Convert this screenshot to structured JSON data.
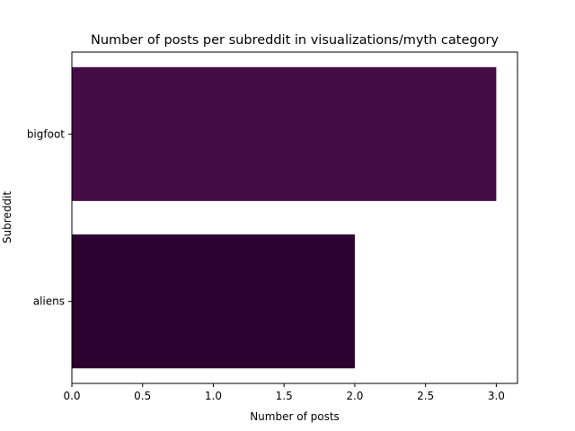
{
  "chart_data": {
    "type": "bar",
    "orientation": "horizontal",
    "title": "Number of posts per subreddit in visualizations/myth category",
    "xlabel": "Number of posts",
    "ylabel": "Subreddit",
    "categories": [
      "aliens",
      "bigfoot"
    ],
    "values": [
      2,
      3
    ],
    "bar_colors": [
      "#2b0230",
      "#450d46"
    ],
    "xlim": [
      0,
      3.15
    ],
    "xticks": [
      "0.0",
      "0.5",
      "1.0",
      "1.5",
      "2.0",
      "2.5",
      "3.0"
    ],
    "grid": false,
    "legend": "none"
  }
}
